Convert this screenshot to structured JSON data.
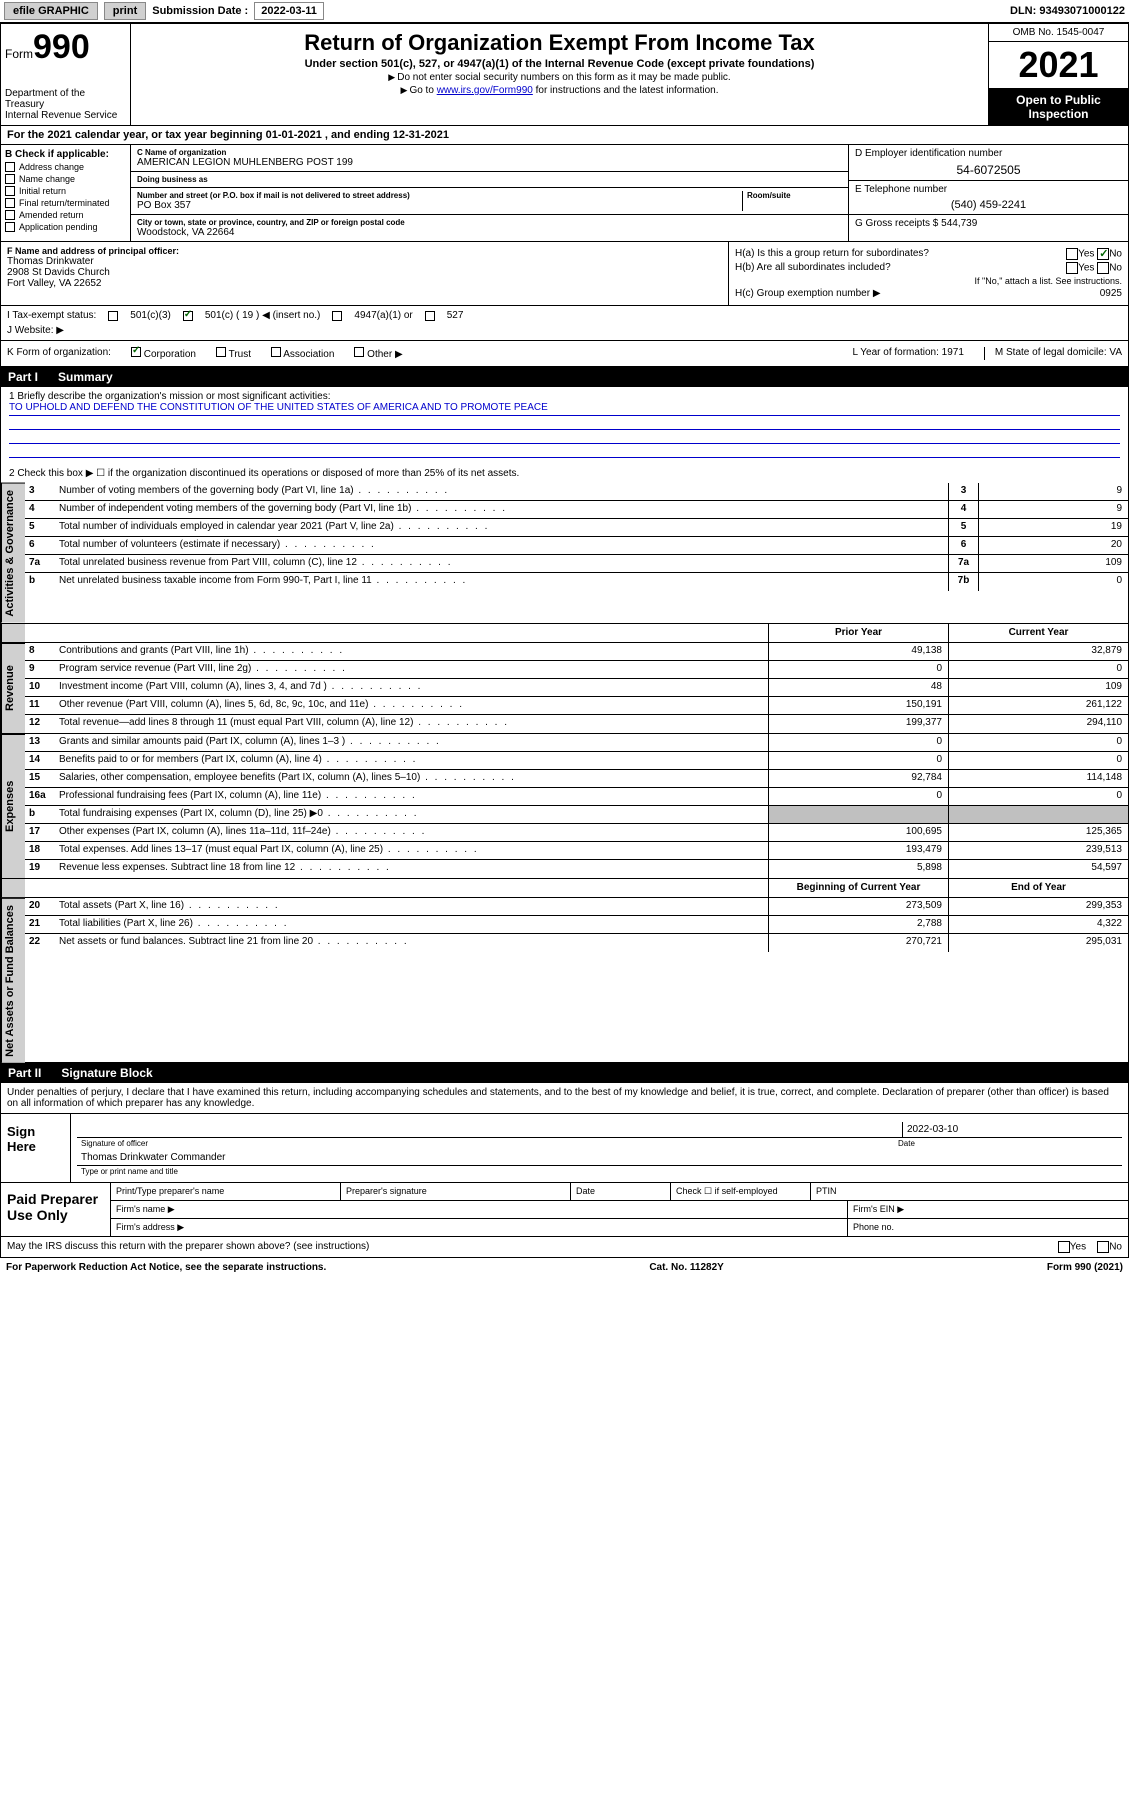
{
  "top_bar": {
    "efile": "efile GRAPHIC",
    "print": "print",
    "submission_label": "Submission Date :",
    "submission_date": "2022-03-11",
    "dln_label": "DLN:",
    "dln": "93493071000122"
  },
  "header": {
    "form_label": "Form",
    "form_number": "990",
    "title": "Return of Organization Exempt From Income Tax",
    "subtitle": "Under section 501(c), 527, or 4947(a)(1) of the Internal Revenue Code (except private foundations)",
    "note1": "Do not enter social security numbers on this form as it may be made public.",
    "note2_pre": "Go to ",
    "note2_link": "www.irs.gov/Form990",
    "note2_post": " for instructions and the latest information.",
    "dept": "Department of the Treasury\nInternal Revenue Service",
    "omb": "OMB No. 1545-0047",
    "year": "2021",
    "open": "Open to Public Inspection"
  },
  "section_a": {
    "text": "For the 2021 calendar year, or tax year beginning 01-01-2021   , and ending 12-31-2021"
  },
  "section_b": {
    "header": "B Check if applicable:",
    "items": [
      "Address change",
      "Name change",
      "Initial return",
      "Final return/terminated",
      "Amended return",
      "Application pending"
    ]
  },
  "section_c": {
    "name_label": "C Name of organization",
    "name": "AMERICAN LEGION MUHLENBERG POST 199",
    "dba_label": "Doing business as",
    "dba": "",
    "street_label": "Number and street (or P.O. box if mail is not delivered to street address)",
    "street": "PO Box 357",
    "room_label": "Room/suite",
    "city_label": "City or town, state or province, country, and ZIP or foreign postal code",
    "city": "Woodstock, VA  22664"
  },
  "section_d": {
    "label": "D Employer identification number",
    "value": "54-6072505"
  },
  "section_e": {
    "label": "E Telephone number",
    "value": "(540) 459-2241"
  },
  "section_g": {
    "label": "G Gross receipts $",
    "value": "544,739"
  },
  "section_f": {
    "label": "F Name and address of principal officer:",
    "name": "Thomas Drinkwater",
    "addr1": "2908 St Davids Church",
    "addr2": "Fort Valley, VA  22652"
  },
  "section_h": {
    "ha_label": "H(a)  Is this a group return for subordinates?",
    "ha_yes": "Yes",
    "ha_no": "No",
    "hb_label": "H(b)  Are all subordinates included?",
    "hb_yes": "Yes",
    "hb_no": "No",
    "hb_note": "If \"No,\" attach a list. See instructions.",
    "hc_label": "H(c)  Group exemption number ▶",
    "hc_value": "0925"
  },
  "section_i": {
    "label": "I   Tax-exempt status:",
    "opt1": "501(c)(3)",
    "opt2": "501(c) ( 19 ) ◀ (insert no.)",
    "opt3": "4947(a)(1) or",
    "opt4": "527"
  },
  "section_j": {
    "label": "J   Website: ▶",
    "value": ""
  },
  "section_k": {
    "label": "K Form of organization:",
    "opts": [
      "Corporation",
      "Trust",
      "Association",
      "Other ▶"
    ],
    "l_label": "L Year of formation:",
    "l_value": "1971",
    "m_label": "M State of legal domicile:",
    "m_value": "VA"
  },
  "part1": {
    "title": "Part I",
    "name": "Summary",
    "mission_label": "1   Briefly describe the organization's mission or most significant activities:",
    "mission": "TO UPHOLD AND DEFEND THE CONSTITUTION OF THE UNITED STATES OF AMERICA AND TO PROMOTE PEACE",
    "line2": "2   Check this box ▶ ☐  if the organization discontinued its operations or disposed of more than 25% of its net assets.",
    "governance_rows": [
      {
        "n": "3",
        "desc": "Number of voting members of the governing body (Part VI, line 1a)",
        "box": "3",
        "val": "9"
      },
      {
        "n": "4",
        "desc": "Number of independent voting members of the governing body (Part VI, line 1b)",
        "box": "4",
        "val": "9"
      },
      {
        "n": "5",
        "desc": "Total number of individuals employed in calendar year 2021 (Part V, line 2a)",
        "box": "5",
        "val": "19"
      },
      {
        "n": "6",
        "desc": "Total number of volunteers (estimate if necessary)",
        "box": "6",
        "val": "20"
      },
      {
        "n": "7a",
        "desc": "Total unrelated business revenue from Part VIII, column (C), line 12",
        "box": "7a",
        "val": "109"
      },
      {
        "n": "b",
        "desc": "Net unrelated business taxable income from Form 990-T, Part I, line 11",
        "box": "7b",
        "val": "0"
      }
    ],
    "col_headers": {
      "prior": "Prior Year",
      "current": "Current Year",
      "begin": "Beginning of Current Year",
      "end": "End of Year"
    },
    "revenue_rows": [
      {
        "n": "8",
        "desc": "Contributions and grants (Part VIII, line 1h)",
        "prior": "49,138",
        "curr": "32,879"
      },
      {
        "n": "9",
        "desc": "Program service revenue (Part VIII, line 2g)",
        "prior": "0",
        "curr": "0"
      },
      {
        "n": "10",
        "desc": "Investment income (Part VIII, column (A), lines 3, 4, and 7d )",
        "prior": "48",
        "curr": "109"
      },
      {
        "n": "11",
        "desc": "Other revenue (Part VIII, column (A), lines 5, 6d, 8c, 9c, 10c, and 11e)",
        "prior": "150,191",
        "curr": "261,122"
      },
      {
        "n": "12",
        "desc": "Total revenue—add lines 8 through 11 (must equal Part VIII, column (A), line 12)",
        "prior": "199,377",
        "curr": "294,110"
      }
    ],
    "expense_rows": [
      {
        "n": "13",
        "desc": "Grants and similar amounts paid (Part IX, column (A), lines 1–3 )",
        "prior": "0",
        "curr": "0"
      },
      {
        "n": "14",
        "desc": "Benefits paid to or for members (Part IX, column (A), line 4)",
        "prior": "0",
        "curr": "0"
      },
      {
        "n": "15",
        "desc": "Salaries, other compensation, employee benefits (Part IX, column (A), lines 5–10)",
        "prior": "92,784",
        "curr": "114,148"
      },
      {
        "n": "16a",
        "desc": "Professional fundraising fees (Part IX, column (A), line 11e)",
        "prior": "0",
        "curr": "0"
      },
      {
        "n": "b",
        "desc": "Total fundraising expenses (Part IX, column (D), line 25) ▶0",
        "prior": "",
        "curr": "",
        "shaded": true
      },
      {
        "n": "17",
        "desc": "Other expenses (Part IX, column (A), lines 11a–11d, 11f–24e)",
        "prior": "100,695",
        "curr": "125,365"
      },
      {
        "n": "18",
        "desc": "Total expenses. Add lines 13–17 (must equal Part IX, column (A), line 25)",
        "prior": "193,479",
        "curr": "239,513"
      },
      {
        "n": "19",
        "desc": "Revenue less expenses. Subtract line 18 from line 12",
        "prior": "5,898",
        "curr": "54,597"
      }
    ],
    "netassets_rows": [
      {
        "n": "20",
        "desc": "Total assets (Part X, line 16)",
        "prior": "273,509",
        "curr": "299,353"
      },
      {
        "n": "21",
        "desc": "Total liabilities (Part X, line 26)",
        "prior": "2,788",
        "curr": "4,322"
      },
      {
        "n": "22",
        "desc": "Net assets or fund balances. Subtract line 21 from line 20",
        "prior": "270,721",
        "curr": "295,031"
      }
    ],
    "section_labels": {
      "gov": "Activities & Governance",
      "rev": "Revenue",
      "exp": "Expenses",
      "net": "Net Assets or Fund Balances"
    }
  },
  "part2": {
    "title": "Part II",
    "name": "Signature Block",
    "decl": "Under penalties of perjury, I declare that I have examined this return, including accompanying schedules and statements, and to the best of my knowledge and belief, it is true, correct, and complete. Declaration of preparer (other than officer) is based on all information of which preparer has any knowledge.",
    "sign_here": "Sign Here",
    "sig_officer_label": "Signature of officer",
    "sig_date": "2022-03-10",
    "sig_date_label": "Date",
    "officer_name": "Thomas Drinkwater Commander",
    "officer_name_label": "Type or print name and title",
    "paid_prep": "Paid Preparer Use Only",
    "prep_name_label": "Print/Type preparer's name",
    "prep_sig_label": "Preparer's signature",
    "prep_date_label": "Date",
    "prep_check_label": "Check ☐ if self-employed",
    "ptin_label": "PTIN",
    "firm_name_label": "Firm's name  ▶",
    "firm_ein_label": "Firm's EIN ▶",
    "firm_addr_label": "Firm's address ▶",
    "phone_label": "Phone no."
  },
  "footer": {
    "discuss": "May the IRS discuss this return with the preparer shown above? (see instructions)",
    "yes": "Yes",
    "no": "No",
    "paperwork": "For Paperwork Reduction Act Notice, see the separate instructions.",
    "cat": "Cat. No. 11282Y",
    "form": "Form 990 (2021)"
  },
  "colors": {
    "link": "#0000cc",
    "shade": "#c0c0c0",
    "header_bg": "#000000"
  }
}
